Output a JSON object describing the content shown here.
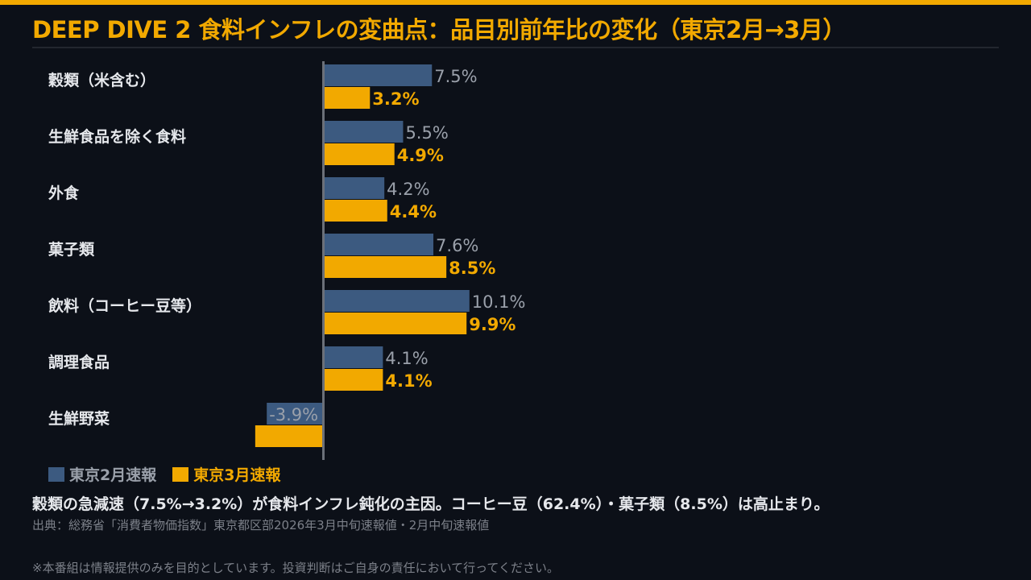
{
  "title": "DEEP DIVE 2  食料インフレの変曲点：品目別前年比の変化（東京2月→3月）",
  "colors": {
    "accent": "#f2a900",
    "feb": "#3c5a80",
    "mar": "#f2a900",
    "feb_label": "#9aa0aa"
  },
  "chart_data": {
    "type": "bar",
    "orientation": "horizontal",
    "categories": [
      "穀類（米含む）",
      "生鮮食品を除く食料",
      "外食",
      "菓子類",
      "飲料（コーヒー豆等）",
      "調理食品",
      "生鮮野菜"
    ],
    "series": [
      {
        "name": "東京2月速報",
        "values": [
          7.5,
          5.5,
          4.2,
          7.6,
          10.1,
          4.1,
          -3.9
        ],
        "labels": [
          "7.5%",
          "5.5%",
          "4.2%",
          "7.6%",
          "10.1%",
          "4.1%",
          "-3.9%"
        ]
      },
      {
        "name": "東京3月速報",
        "values": [
          3.2,
          4.9,
          4.4,
          8.5,
          9.9,
          4.1,
          -4.7
        ],
        "labels": [
          "3.2%",
          "4.9%",
          "4.4%",
          "8.5%",
          "9.9%",
          "4.1%",
          null
        ]
      }
    ],
    "unit": "%",
    "legend": "bottom-left",
    "grid": false
  },
  "note": "穀類の急減速（7.5%→3.2%）が食料インフレ鈍化の主因。コーヒー豆（62.4%）・菓子類（8.5%）は高止まり。",
  "source": "出典：総務省「消費者物価指数」東京都区部2026年3月中旬速報値・2月中旬速報値",
  "disclaimer": "※本番組は情報提供のみを目的としています。投資判断はご自身の責任において行ってください。"
}
